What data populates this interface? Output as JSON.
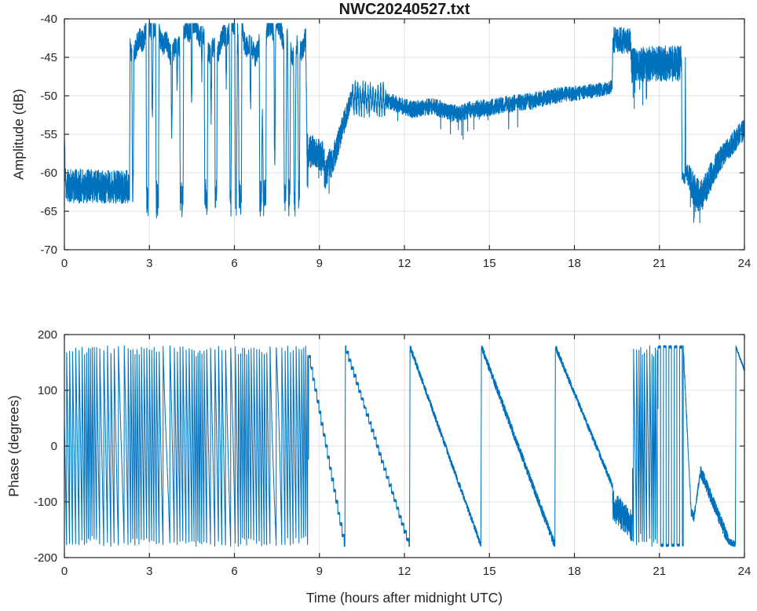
{
  "figure": {
    "title": "NWC20240527.txt",
    "background": "#ffffff",
    "axis_color": "#262626",
    "grid_color": "#e0e0e0",
    "line_color": "#0072BD"
  },
  "chart_data": [
    {
      "type": "line",
      "title": "NWC20240527.txt",
      "xlabel": "",
      "ylabel": "Amplitude (dB)",
      "xlim": [
        0,
        24
      ],
      "ylim": [
        -70,
        -40
      ],
      "xticks": [
        0,
        3,
        6,
        9,
        12,
        15,
        18,
        21,
        24
      ],
      "yticks": [
        -70,
        -65,
        -60,
        -55,
        -50,
        -45,
        -40
      ],
      "grid": true,
      "legend": null,
      "series": [
        {
          "name": "amplitude",
          "color": "#0072BD",
          "description": "Noise floor ~-62 dB until 02:20 UT; strong on-off keying between ~-41 and -65 dB from 02:20-08:30; drop to ~-57 dB band 08:30-09:30; rise to ~-50 dB by 10:00; steady ~-51 dB daytime level through ~19:20; step up to ~-43 dB 19:20-20:00; ~-46 dB band until 21:45; sharp dropout to minimum ~-66 dB near 22:20; recovery to ~-54 dB by 24:00",
          "center_points": [
            [
              0.0,
              -55.0
            ],
            [
              0.02,
              -59.0
            ],
            [
              0.05,
              -61.7
            ],
            [
              2.3,
              -61.8
            ],
            [
              2.32,
              -43.0
            ],
            [
              8.52,
              -43.0
            ],
            [
              8.56,
              -57.0
            ],
            [
              8.9,
              -57.5
            ],
            [
              9.15,
              -58.0
            ],
            [
              9.22,
              -60.5
            ],
            [
              9.3,
              -59.0
            ],
            [
              9.45,
              -58.8
            ],
            [
              10.1,
              -50.6
            ],
            [
              10.15,
              -50.3
            ],
            [
              11.35,
              -50.6
            ],
            [
              12.3,
              -51.8
            ],
            [
              13.0,
              -51.3
            ],
            [
              13.5,
              -52.0
            ],
            [
              13.9,
              -52.4
            ],
            [
              14.3,
              -51.8
            ],
            [
              15.0,
              -51.5
            ],
            [
              15.8,
              -51.0
            ],
            [
              16.5,
              -50.7
            ],
            [
              17.3,
              -50.0
            ],
            [
              18.2,
              -49.6
            ],
            [
              18.8,
              -49.3
            ],
            [
              19.33,
              -48.8
            ],
            [
              19.36,
              -42.7
            ],
            [
              19.97,
              -42.9
            ],
            [
              20.02,
              -46.0
            ],
            [
              21.0,
              -45.8
            ],
            [
              21.78,
              -45.8
            ],
            [
              21.8,
              -60.5
            ],
            [
              21.9,
              -60.8
            ],
            [
              21.915,
              -44.8
            ],
            [
              21.93,
              -59.8
            ],
            [
              22.05,
              -60.6
            ],
            [
              22.2,
              -62.0
            ],
            [
              22.4,
              -63.2
            ],
            [
              22.55,
              -62.6
            ],
            [
              22.9,
              -59.8
            ],
            [
              23.3,
              -57.4
            ],
            [
              23.7,
              -55.6
            ],
            [
              24.0,
              -54.3
            ]
          ],
          "noise_amp_points": [
            [
              0,
              2.2
            ],
            [
              2.3,
              2.2
            ],
            [
              2.32,
              1.3
            ],
            [
              8.52,
              1.3
            ],
            [
              8.56,
              2.2
            ],
            [
              9.45,
              2.0
            ],
            [
              10.15,
              1.2
            ],
            [
              11.35,
              1.1
            ],
            [
              16.0,
              1.1
            ],
            [
              19.33,
              0.9
            ],
            [
              19.36,
              1.7
            ],
            [
              19.97,
              1.7
            ],
            [
              20.02,
              2.3
            ],
            [
              21.78,
              2.3
            ],
            [
              21.8,
              0.6
            ],
            [
              21.93,
              0.7
            ],
            [
              22.05,
              1.8
            ],
            [
              22.3,
              2.2
            ],
            [
              22.6,
              2.0
            ],
            [
              23.2,
              1.6
            ],
            [
              24.0,
              1.4
            ]
          ],
          "keying": {
            "t0": 2.32,
            "t1": 8.52,
            "top_mean": -42.6,
            "top_swing": 1.6,
            "notch_bottom": -64.5
          },
          "ripple": {
            "t0": 10.15,
            "t1": 11.35,
            "period": 0.09,
            "amp": 1.3
          },
          "spikes": [
            {
              "t0": 8.56,
              "t1": 9.4,
              "p": 0.05,
              "depth": 3.0
            },
            {
              "t0": 11.3,
              "t1": 16.0,
              "p": 0.02,
              "depth": 2.3
            },
            {
              "t0": 20.0,
              "t1": 20.65,
              "p": 0.05,
              "depth": 3.5
            },
            {
              "t0": 22.05,
              "t1": 22.5,
              "p": 0.05,
              "depth": 2.8
            }
          ]
        }
      ]
    },
    {
      "type": "line",
      "title": "",
      "xlabel": "Time (hours after midnight UTC)",
      "ylabel": "Phase (degrees)",
      "xlim": [
        0,
        24
      ],
      "ylim": [
        -200,
        200
      ],
      "xticks": [
        0,
        3,
        6,
        9,
        12,
        15,
        18,
        21,
        24
      ],
      "yticks": [
        -200,
        -100,
        0,
        100,
        200
      ],
      "grid": true,
      "legend": null,
      "series": [
        {
          "name": "phase",
          "color": "#0072BD",
          "description": "Rapid phase wrapping between +/-180 deg from 00:00-08:35; then slow descending sawtooth ramps (wraps near 09:55, 12:10, 14:40, 17:20); noisy plateau ~-120 deg near 19:30; dense wrapping 20:00-21:00; sparse wraps to ~21:50; bump to ~-45 deg near 22:25; descent to -180 by 23:30; final wrap and descent to ~+135 deg at 24:00",
          "segments": [
            {
              "type": "wrap",
              "t0": 0.0,
              "t1": 8.62,
              "freq": 9.5,
              "noise": 3,
              "mods": [
                {
                  "amp": 3.5,
                  "period": 1.9,
                  "ph": -1.2
                },
                {
                  "amp": 2.5,
                  "period": 0.77,
                  "ph": 0.5
                }
              ]
            },
            {
              "type": "ramp",
              "t0": 8.62,
              "t1": 9.9,
              "from": 168,
              "to": -178,
              "noise": 3,
              "step": 20
            },
            {
              "type": "ramp",
              "t0": 9.92,
              "t1": 12.18,
              "from": 178,
              "to": -178,
              "noise": 3,
              "step": 14
            },
            {
              "type": "ramp",
              "t0": 12.2,
              "t1": 14.7,
              "from": 178,
              "to": -178,
              "noise": 6,
              "step": 0
            },
            {
              "type": "ramp",
              "t0": 14.72,
              "t1": 17.31,
              "from": 178,
              "to": -178,
              "noise": 8,
              "step": 0
            },
            {
              "type": "ramp",
              "t0": 17.33,
              "t1": 19.35,
              "from": 178,
              "to": -72,
              "noise": 6,
              "step": 0
            },
            {
              "type": "band",
              "t0": 19.35,
              "t1": 20.05,
              "from": -105,
              "to": -145,
              "noise": 28
            },
            {
              "type": "wrap",
              "t0": 20.05,
              "t1": 20.95,
              "freq": 13,
              "noise": 3,
              "mods": [
                {
                  "amp": 4,
                  "period": 0.45,
                  "ph": 0
                }
              ]
            },
            {
              "type": "square",
              "t0": 20.95,
              "t1": 21.84,
              "freq": 10.5,
              "hi": 178,
              "lo": -178,
              "noise": 3
            },
            {
              "type": "ramp",
              "t0": 21.84,
              "t1": 22.12,
              "from": 178,
              "to": -118,
              "noise": 8,
              "step": 0
            },
            {
              "type": "ramp",
              "t0": 22.12,
              "t1": 22.22,
              "from": -118,
              "to": -128,
              "noise": 8,
              "step": 0
            },
            {
              "type": "ramp",
              "t0": 22.22,
              "t1": 22.45,
              "from": -128,
              "to": -44,
              "noise": 7,
              "step": 0
            },
            {
              "type": "ramp",
              "t0": 22.45,
              "t1": 23.45,
              "from": -44,
              "to": -172,
              "noise": 12,
              "step": 0
            },
            {
              "type": "band",
              "t0": 23.45,
              "t1": 23.68,
              "from": -172,
              "to": -176,
              "noise": 6
            },
            {
              "type": "ramp",
              "t0": 23.7,
              "t1": 24.0,
              "from": 178,
              "to": 136,
              "noise": 3,
              "step": 0
            }
          ]
        }
      ]
    }
  ]
}
